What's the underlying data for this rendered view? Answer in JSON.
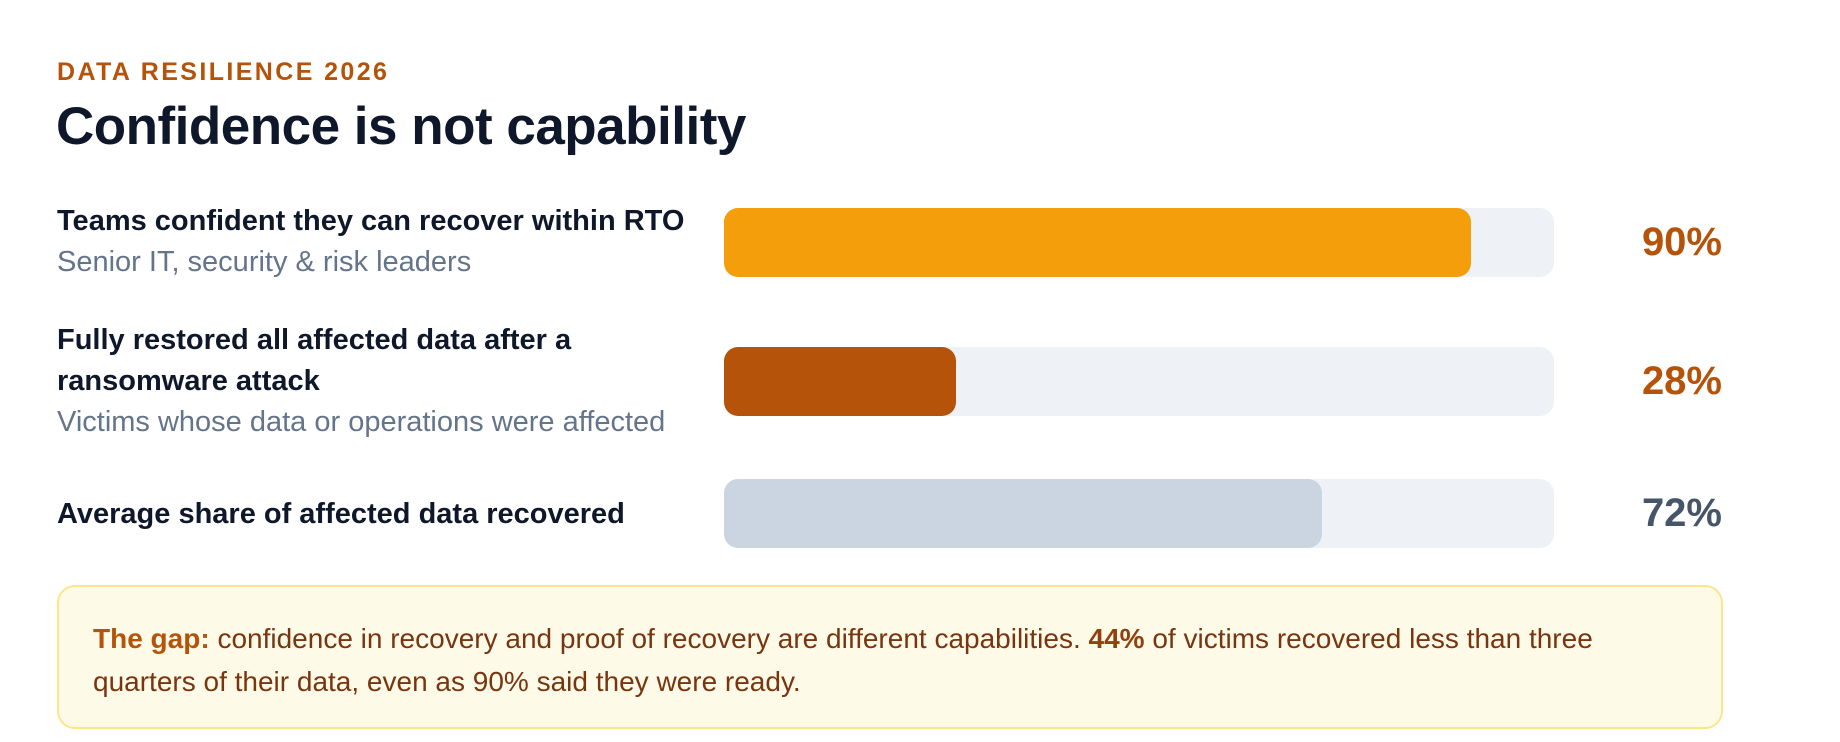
{
  "header": {
    "eyebrow": "DATA RESILIENCE 2026",
    "title": "Confidence is not capability"
  },
  "chart_data": {
    "type": "bar",
    "orientation": "horizontal",
    "xlim": [
      0,
      100
    ],
    "rows": [
      {
        "label": "Teams confident they can recover within RTO",
        "sublabel": "Senior IT, security & risk leaders",
        "value": 90,
        "value_label": "90%",
        "color": "#f59e0b",
        "value_color": "#b45309"
      },
      {
        "label": "Fully restored all affected data after a ransomware attack",
        "sublabel": "Victims whose data or operations were affected",
        "value": 28,
        "value_label": "28%",
        "color": "#b45309",
        "value_color": "#b45309"
      },
      {
        "label": "Average share of affected data recovered",
        "sublabel": "",
        "value": 72,
        "value_label": "72%",
        "color": "#cbd5e1",
        "value_color": "#475569"
      }
    ],
    "track_color": "#eef2f7"
  },
  "callout": {
    "lead": "The gap:",
    "text_1": " confidence in recovery and proof of recovery are different capabilities. ",
    "stat": "44%",
    "text_2": " of victims recovered less than three quarters of their data, even as 90% said they were ready."
  }
}
